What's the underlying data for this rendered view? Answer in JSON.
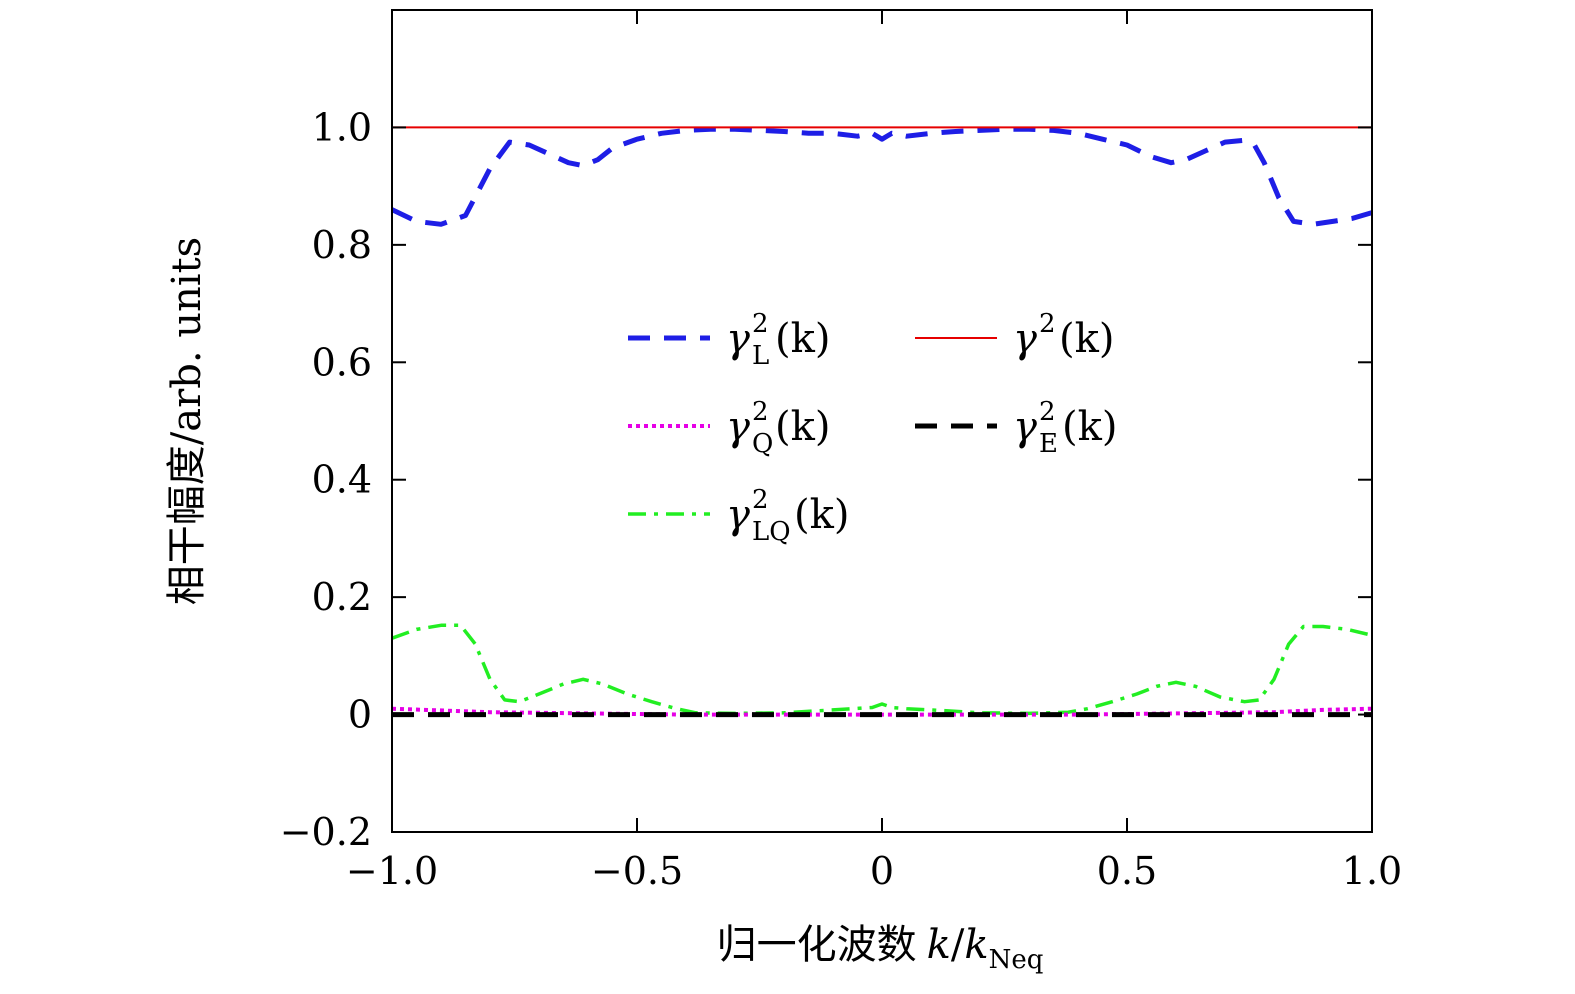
{
  "chart_data": {
    "type": "line",
    "title": "",
    "xlabel": {
      "text": "归一化波数",
      "var": "k",
      "slash": "/",
      "var2": "k",
      "sub": "Neq"
    },
    "ylabel": "相干幅度/arb. units",
    "xlim": [
      -1.0,
      1.0
    ],
    "ylim": [
      -0.2,
      1.2
    ],
    "xticks": [
      -1.0,
      -0.5,
      0,
      0.5,
      1.0
    ],
    "xtick_labels": [
      "−1.0",
      "−0.5",
      "0",
      "0.5",
      "1.0"
    ],
    "yticks": [
      -0.2,
      0,
      0.2,
      0.4,
      0.6,
      0.8,
      1.0
    ],
    "ytick_labels": [
      "−0.2",
      "0",
      "0.2",
      "0.4",
      "0.6",
      "0.8",
      "1.0"
    ],
    "legend_position": "center",
    "series": [
      {
        "id": "gL",
        "name": "γL²(k)",
        "label": {
          "base": "γ",
          "sup": "2",
          "sub": "L",
          "arg": "(k)"
        },
        "color": "#1e1ee6",
        "style": "dashed",
        "x": [
          -1.0,
          -0.95,
          -0.9,
          -0.85,
          -0.8,
          -0.76,
          -0.72,
          -0.68,
          -0.64,
          -0.61,
          -0.58,
          -0.55,
          -0.5,
          -0.45,
          -0.4,
          -0.35,
          -0.3,
          -0.25,
          -0.2,
          -0.15,
          -0.1,
          -0.05,
          -0.02,
          0,
          0.02,
          0.05,
          0.1,
          0.15,
          0.2,
          0.25,
          0.3,
          0.35,
          0.4,
          0.45,
          0.5,
          0.55,
          0.59,
          0.62,
          0.66,
          0.7,
          0.74,
          0.76,
          0.78,
          0.81,
          0.84,
          0.88,
          0.92,
          0.96,
          1.0
        ],
        "y": [
          0.86,
          0.84,
          0.835,
          0.85,
          0.93,
          0.975,
          0.97,
          0.955,
          0.94,
          0.935,
          0.945,
          0.965,
          0.98,
          0.99,
          0.995,
          0.997,
          0.997,
          0.995,
          0.993,
          0.99,
          0.99,
          0.985,
          0.99,
          0.98,
          0.99,
          0.985,
          0.99,
          0.993,
          0.995,
          0.997,
          0.997,
          0.995,
          0.99,
          0.98,
          0.97,
          0.95,
          0.94,
          0.945,
          0.96,
          0.975,
          0.978,
          0.97,
          0.94,
          0.88,
          0.84,
          0.835,
          0.84,
          0.845,
          0.855
        ]
      },
      {
        "id": "g",
        "name": "γ²(k)",
        "label": {
          "base": "γ",
          "sup": "2",
          "sub": "",
          "arg": "(k)"
        },
        "color": "#e60000",
        "style": "solid",
        "x": [
          -1.0,
          1.0
        ],
        "y": [
          1.0,
          1.0
        ]
      },
      {
        "id": "gQ",
        "name": "γQ²(k)",
        "label": {
          "base": "γ",
          "sup": "2",
          "sub": "Q",
          "arg": "(k)"
        },
        "color": "#e600e6",
        "style": "dotted",
        "x": [
          -1.0,
          -0.8,
          -0.6,
          -0.4,
          -0.2,
          0,
          0.2,
          0.4,
          0.6,
          0.8,
          0.9,
          1.0
        ],
        "y": [
          0.01,
          0.004,
          0.002,
          0.0,
          0.0,
          0.0,
          0.0,
          0.0,
          0.002,
          0.004,
          0.008,
          0.01
        ]
      },
      {
        "id": "gE",
        "name": "γE²(k)",
        "label": {
          "base": "γ",
          "sup": "2",
          "sub": "E",
          "arg": "(k)"
        },
        "color": "#000000",
        "style": "dashed",
        "x": [
          -1.0,
          1.0
        ],
        "y": [
          0.0,
          0.0
        ]
      },
      {
        "id": "gLQ",
        "name": "γLQ²(k)",
        "label": {
          "base": "γ",
          "sup": "2",
          "sub": "LQ",
          "arg": "(k)"
        },
        "color": "#22ee22",
        "style": "dashdot",
        "x": [
          -1.0,
          -0.95,
          -0.9,
          -0.86,
          -0.83,
          -0.8,
          -0.77,
          -0.74,
          -0.7,
          -0.65,
          -0.61,
          -0.57,
          -0.52,
          -0.47,
          -0.42,
          -0.38,
          -0.3,
          -0.2,
          -0.1,
          -0.02,
          0,
          0.02,
          0.05,
          0.1,
          0.2,
          0.3,
          0.38,
          0.42,
          0.47,
          0.52,
          0.56,
          0.6,
          0.64,
          0.69,
          0.74,
          0.77,
          0.8,
          0.83,
          0.86,
          0.9,
          0.95,
          1.0
        ],
        "y": [
          0.13,
          0.145,
          0.152,
          0.152,
          0.12,
          0.06,
          0.025,
          0.022,
          0.035,
          0.052,
          0.06,
          0.052,
          0.035,
          0.022,
          0.01,
          0.003,
          0.002,
          0.003,
          0.008,
          0.012,
          0.018,
          0.012,
          0.01,
          0.008,
          0.003,
          0.002,
          0.004,
          0.01,
          0.022,
          0.035,
          0.048,
          0.055,
          0.048,
          0.03,
          0.022,
          0.025,
          0.06,
          0.12,
          0.15,
          0.15,
          0.145,
          0.135
        ]
      }
    ]
  }
}
